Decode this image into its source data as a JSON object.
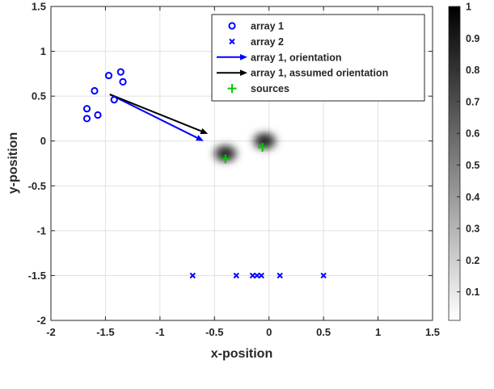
{
  "chart_data": {
    "type": "scatter",
    "title": "",
    "xlabel": "x-position",
    "ylabel": "y-position",
    "xlim": [
      -2,
      1.5
    ],
    "ylim": [
      -2,
      1.5
    ],
    "xticks": [
      -2,
      -1.5,
      -1,
      -0.5,
      0,
      0.5,
      1,
      1.5
    ],
    "xtick_labels": [
      "-2",
      "-1.5",
      "-1",
      "-0.5",
      "0",
      "0.5",
      "1",
      "1.5"
    ],
    "yticks": [
      -2,
      -1.5,
      -1,
      -0.5,
      0,
      0.5,
      1,
      1.5
    ],
    "ytick_labels": [
      "-2",
      "-1.5",
      "-1",
      "-0.5",
      "0",
      "0.5",
      "1",
      "1.5"
    ],
    "grid": true,
    "legend_position": "top-right",
    "series": [
      {
        "name": "array 1",
        "marker": "circle",
        "color": "#0000ff",
        "x": [
          -1.67,
          -1.67,
          -1.6,
          -1.57,
          -1.47,
          -1.42,
          -1.36,
          -1.34
        ],
        "y": [
          0.36,
          0.25,
          0.56,
          0.29,
          0.73,
          0.46,
          0.77,
          0.66
        ]
      },
      {
        "name": "array 2",
        "marker": "x",
        "color": "#0000ff",
        "x": [
          -0.7,
          -0.3,
          -0.15,
          -0.11,
          -0.07,
          0.1,
          0.5
        ],
        "y": [
          -1.5,
          -1.5,
          -1.5,
          -1.5,
          -1.5,
          -1.5,
          -1.5
        ]
      },
      {
        "name": "array 1, orientation",
        "type": "arrow",
        "color": "#0000ff",
        "x": [
          -1.46,
          -0.6
        ],
        "y": [
          0.52,
          0.0
        ]
      },
      {
        "name": "array 1, assumed orientation",
        "type": "arrow",
        "color": "#000000",
        "x": [
          -1.46,
          -0.56
        ],
        "y": [
          0.52,
          0.08
        ]
      },
      {
        "name": "sources",
        "marker": "plus",
        "color": "#00cc00",
        "x": [
          -0.4,
          -0.06
        ],
        "y": [
          -0.2,
          -0.07
        ]
      }
    ],
    "heatmap": {
      "colormap": "gray-reversed",
      "peaks": [
        {
          "x": -0.4,
          "y": -0.14,
          "value": 1
        },
        {
          "x": -0.04,
          "y": 0.0,
          "value": 1
        }
      ]
    },
    "colorbar": {
      "ticks": [
        0.1,
        0.2,
        0.3,
        0.4,
        0.5,
        0.6,
        0.7,
        0.8,
        0.9,
        1
      ],
      "tick_labels": [
        "0.1",
        "0.2",
        "0.3",
        "0.4",
        "0.5",
        "0.6",
        "0.7",
        "0.8",
        "0.9",
        "1"
      ],
      "range": [
        0.01,
        1
      ]
    }
  }
}
